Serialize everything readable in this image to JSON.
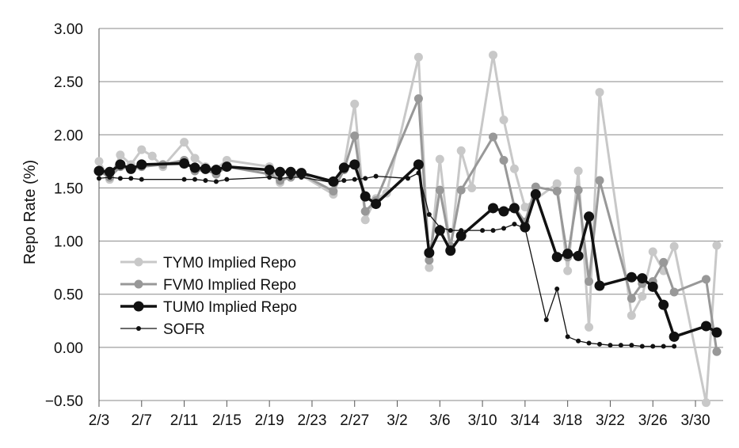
{
  "chart_data": {
    "type": "line",
    "ylabel": "Repo Rate (%)",
    "ylim": [
      -0.5,
      3.0
    ],
    "yticks": [
      "3.00",
      "2.50",
      "2.00",
      "1.50",
      "1.00",
      "0.50",
      "0.00",
      "−0.50"
    ],
    "ytick_values": [
      3.0,
      2.5,
      2.0,
      1.5,
      1.0,
      0.5,
      0.0,
      -0.5
    ],
    "xlim": [
      0,
      58.6
    ],
    "xtick_labels": [
      "2/3",
      "2/7",
      "2/11",
      "2/15",
      "2/19",
      "2/23",
      "2/27",
      "3/2",
      "3/6",
      "3/10",
      "3/14",
      "3/18",
      "3/22",
      "3/26",
      "3/30"
    ],
    "xtick_days": [
      0,
      4,
      8,
      12,
      16,
      20,
      24,
      28,
      32,
      36,
      40,
      44,
      48,
      52,
      56
    ],
    "x_unit": "days after 2/3",
    "grid": "horizontal",
    "legend_position": "lower-left",
    "series": [
      {
        "name": "TYM0 Implied Repo",
        "color": "#c8c8c8",
        "style": "medium",
        "x": [
          0,
          1,
          2,
          3,
          4,
          5,
          6,
          8,
          9,
          10,
          11,
          12,
          16,
          17,
          18,
          19,
          22,
          23,
          24,
          25,
          26,
          27,
          30,
          31,
          32,
          33,
          34,
          35,
          37,
          38,
          39,
          40,
          43,
          44,
          45,
          46,
          47,
          50,
          51,
          52,
          53,
          54,
          57,
          58
        ],
        "y": [
          1.75,
          1.58,
          1.81,
          1.72,
          1.86,
          1.8,
          1.7,
          1.93,
          1.78,
          1.7,
          1.68,
          1.76,
          1.7,
          1.55,
          1.62,
          1.62,
          1.44,
          1.7,
          2.29,
          1.2,
          1.4,
          1.45,
          2.73,
          0.75,
          1.77,
          0.9,
          1.85,
          1.5,
          2.75,
          2.14,
          1.68,
          1.32,
          1.54,
          0.72,
          1.66,
          0.19,
          2.4,
          0.3,
          0.48,
          0.9,
          0.72,
          0.95,
          -0.52,
          0.96
        ]
      },
      {
        "name": "FVM0 Implied Repo",
        "color": "#989898",
        "style": "medium",
        "x": [
          0,
          1,
          2,
          3,
          4,
          6,
          8,
          9,
          10,
          11,
          12,
          16,
          17,
          18,
          19,
          22,
          23,
          24,
          25,
          26,
          30,
          31,
          32,
          33,
          34,
          37,
          38,
          39,
          40,
          41,
          43,
          44,
          45,
          46,
          47,
          50,
          51,
          52,
          53,
          54,
          57,
          58
        ],
        "y": [
          1.66,
          1.6,
          1.7,
          1.67,
          1.7,
          1.72,
          1.76,
          1.66,
          1.67,
          1.63,
          1.7,
          1.63,
          1.57,
          1.6,
          1.63,
          1.47,
          1.67,
          1.99,
          1.28,
          1.38,
          2.34,
          0.82,
          1.48,
          0.95,
          1.48,
          1.98,
          1.76,
          1.32,
          1.18,
          1.51,
          1.47,
          0.85,
          1.48,
          0.62,
          1.57,
          0.46,
          0.6,
          0.62,
          0.8,
          0.52,
          0.64,
          -0.04
        ]
      },
      {
        "name": "TUM0 Implied Repo",
        "color": "#111111",
        "style": "bold",
        "x": [
          0,
          1,
          2,
          3,
          4,
          8,
          9,
          10,
          11,
          12,
          16,
          17,
          18,
          19,
          22,
          23,
          24,
          25,
          26,
          30,
          31,
          32,
          33,
          34,
          37,
          38,
          39,
          40,
          41,
          43,
          44,
          45,
          46,
          47,
          50,
          51,
          52,
          53,
          54,
          57,
          58
        ],
        "y": [
          1.66,
          1.65,
          1.72,
          1.68,
          1.72,
          1.73,
          1.69,
          1.68,
          1.67,
          1.7,
          1.67,
          1.65,
          1.65,
          1.64,
          1.56,
          1.69,
          1.72,
          1.42,
          1.35,
          1.72,
          0.89,
          1.1,
          0.91,
          1.05,
          1.31,
          1.28,
          1.31,
          1.13,
          1.44,
          0.85,
          0.88,
          0.86,
          1.23,
          0.58,
          0.66,
          0.65,
          0.57,
          0.4,
          0.1,
          0.2,
          0.14
        ]
      },
      {
        "name": "SOFR",
        "color": "#111111",
        "style": "thin",
        "x": [
          0,
          1,
          2,
          3,
          4,
          8,
          9,
          10,
          11,
          12,
          16,
          17,
          18,
          19,
          22,
          23,
          24,
          25,
          26,
          29,
          30,
          31,
          32,
          33,
          34,
          36,
          37,
          38,
          39,
          40,
          42,
          43,
          44,
          45,
          46,
          47,
          48,
          49,
          50,
          51,
          52,
          53,
          54
        ],
        "y": [
          1.59,
          1.6,
          1.59,
          1.59,
          1.58,
          1.58,
          1.58,
          1.57,
          1.56,
          1.58,
          1.6,
          1.59,
          1.6,
          1.6,
          1.55,
          1.57,
          1.58,
          1.59,
          1.61,
          1.59,
          1.64,
          1.25,
          1.13,
          1.1,
          1.1,
          1.1,
          1.1,
          1.12,
          1.16,
          1.12,
          0.26,
          0.55,
          0.1,
          0.06,
          0.04,
          0.03,
          0.02,
          0.02,
          0.02,
          0.01,
          0.01,
          0.01,
          0.01
        ]
      }
    ]
  }
}
